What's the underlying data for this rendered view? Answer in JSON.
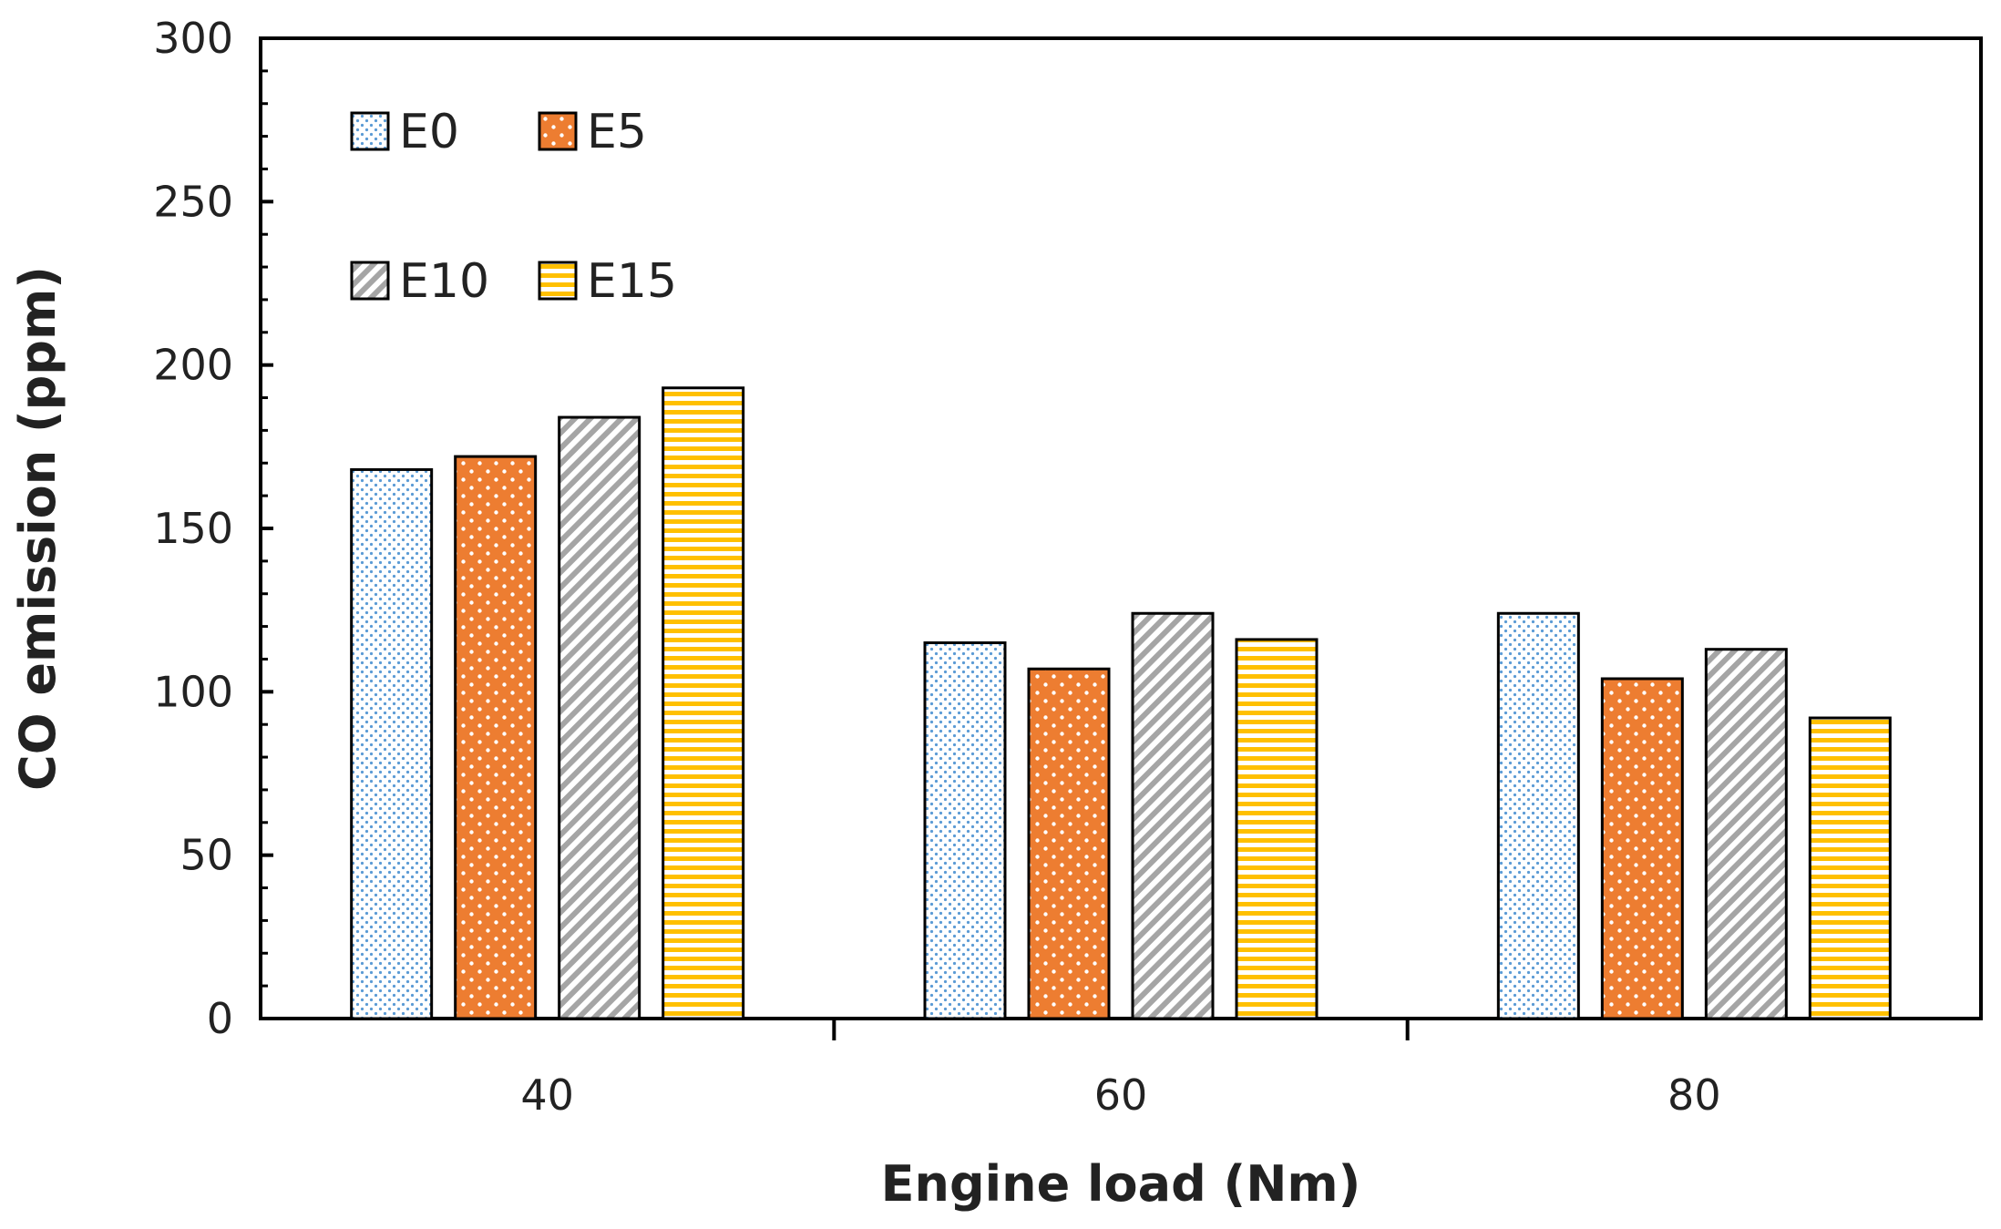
{
  "chart_data": {
    "type": "bar",
    "categories": [
      "40",
      "60",
      "80"
    ],
    "series": [
      {
        "name": "E0",
        "values": [
          168,
          115,
          124
        ],
        "color": "#5b9bd5",
        "pattern": "dots-small"
      },
      {
        "name": "E5",
        "values": [
          172,
          107,
          104
        ],
        "color": "#ed7d31",
        "pattern": "dots-white"
      },
      {
        "name": "E10",
        "values": [
          184,
          124,
          113
        ],
        "color": "#a5a5a5",
        "pattern": "diagonal"
      },
      {
        "name": "E15",
        "values": [
          193,
          116,
          92
        ],
        "color": "#ffc000",
        "pattern": "horizontal"
      }
    ],
    "title": "",
    "xlabel": "Engine load (Nm)",
    "ylabel": "CO emission (ppm)",
    "ylim": [
      0,
      300
    ],
    "yticks": [
      0,
      50,
      100,
      150,
      200,
      250,
      300
    ],
    "grid": false,
    "legend": "top-left"
  }
}
